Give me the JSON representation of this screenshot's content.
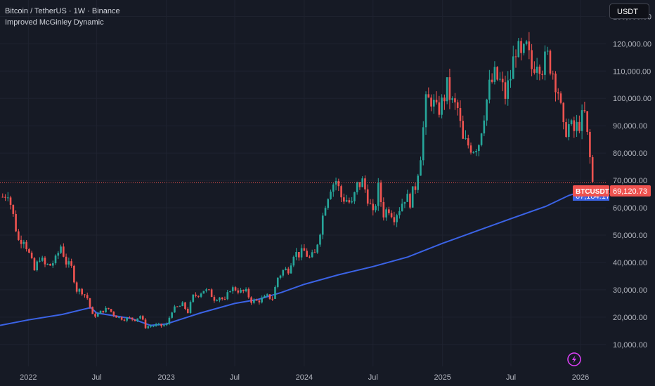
{
  "header": {
    "symbol_line": "Bitcoin / TetherUS · 1W · Binance",
    "indicator_line": "Improved McGinley Dynamic"
  },
  "currency_button": "USDT",
  "price_tag": {
    "symbol": "BTCUSDT",
    "price": "69,120.73",
    "indicator_value": "67,184.17"
  },
  "colors": {
    "background": "#161a25",
    "up": "#26a69a",
    "down": "#ef5350",
    "indicator": "#3b63e6",
    "grid": "#1f2330",
    "price_line": "#ef5350"
  },
  "icons": {
    "bottom_right": "lightning-icon"
  },
  "chart_data": {
    "type": "candlestick",
    "title": "",
    "y_tick_labels": [
      "130,000.00",
      "120,000.00",
      "110,000.00",
      "100,000.00",
      "90,000.00",
      "80,000.00",
      "70,000.00",
      "60,000.00",
      "50,000.00",
      "40,000.00",
      "30,000.00",
      "20,000.00",
      "10,000.00"
    ],
    "y_ticks": [
      130000,
      120000,
      110000,
      100000,
      90000,
      80000,
      70000,
      60000,
      50000,
      40000,
      30000,
      20000,
      10000
    ],
    "x_tick_labels": [
      "2022",
      "Jul",
      "2023",
      "Jul",
      "2024",
      "Jul",
      "2025",
      "Jul",
      "2026"
    ],
    "x_ticks": [
      "2022-01-01",
      "2022-07-01",
      "2023-01-01",
      "2023-07-01",
      "2024-01-01",
      "2024-07-01",
      "2025-01-01",
      "2025-07-01",
      "2026-01-01"
    ],
    "x_range": [
      "2021-10-18",
      "2026-03-09"
    ],
    "ylim": [
      2000,
      136000
    ],
    "grid": true,
    "series": [
      {
        "name": "BTCUSDT",
        "kind": "ohlc",
        "points": [
          {
            "x": "2021-10-25",
            "c": 64000
          },
          {
            "x": "2021-11-08",
            "c": 66000
          },
          {
            "x": "2021-11-22",
            "c": 57000
          },
          {
            "x": "2021-12-06",
            "c": 48000
          },
          {
            "x": "2021-12-20",
            "c": 49000
          },
          {
            "x": "2022-01-03",
            "c": 43000
          },
          {
            "x": "2022-01-17",
            "c": 37000
          },
          {
            "x": "2022-01-31",
            "c": 42000
          },
          {
            "x": "2022-02-14",
            "c": 39000
          },
          {
            "x": "2022-02-28",
            "c": 39000
          },
          {
            "x": "2022-03-14",
            "c": 41000
          },
          {
            "x": "2022-03-28",
            "c": 46000
          },
          {
            "x": "2022-04-11",
            "c": 40000
          },
          {
            "x": "2022-04-25",
            "c": 38000
          },
          {
            "x": "2022-05-09",
            "c": 30000
          },
          {
            "x": "2022-05-23",
            "c": 29500
          },
          {
            "x": "2022-06-06",
            "c": 27000
          },
          {
            "x": "2022-06-20",
            "c": 20500
          },
          {
            "x": "2022-07-04",
            "c": 21000
          },
          {
            "x": "2022-07-18",
            "c": 22500
          },
          {
            "x": "2022-08-01",
            "c": 23000
          },
          {
            "x": "2022-08-15",
            "c": 21000
          },
          {
            "x": "2022-08-29",
            "c": 19800
          },
          {
            "x": "2022-09-12",
            "c": 19500
          },
          {
            "x": "2022-09-26",
            "c": 19500
          },
          {
            "x": "2022-10-10",
            "c": 19200
          },
          {
            "x": "2022-10-24",
            "c": 20500
          },
          {
            "x": "2022-11-07",
            "c": 16500
          },
          {
            "x": "2022-11-21",
            "c": 16800
          },
          {
            "x": "2022-12-05",
            "c": 17000
          },
          {
            "x": "2022-12-19",
            "c": 16800
          },
          {
            "x": "2023-01-02",
            "c": 17200
          },
          {
            "x": "2023-01-16",
            "c": 22500
          },
          {
            "x": "2023-01-30",
            "c": 23500
          },
          {
            "x": "2023-02-13",
            "c": 24500
          },
          {
            "x": "2023-02-27",
            "c": 22000
          },
          {
            "x": "2023-03-13",
            "c": 27500
          },
          {
            "x": "2023-03-27",
            "c": 28400
          },
          {
            "x": "2023-04-10",
            "c": 30000
          },
          {
            "x": "2023-04-24",
            "c": 29200
          },
          {
            "x": "2023-05-08",
            "c": 26800
          },
          {
            "x": "2023-05-22",
            "c": 27500
          },
          {
            "x": "2023-06-05",
            "c": 25800
          },
          {
            "x": "2023-06-19",
            "c": 30500
          },
          {
            "x": "2023-07-03",
            "c": 30300
          },
          {
            "x": "2023-07-17",
            "c": 29300
          },
          {
            "x": "2023-07-31",
            "c": 29200
          },
          {
            "x": "2023-08-14",
            "c": 26000
          },
          {
            "x": "2023-08-28",
            "c": 25800
          },
          {
            "x": "2023-09-11",
            "c": 26500
          },
          {
            "x": "2023-09-25",
            "c": 27500
          },
          {
            "x": "2023-10-09",
            "c": 27000
          },
          {
            "x": "2023-10-23",
            "c": 34500
          },
          {
            "x": "2023-11-06",
            "c": 37000
          },
          {
            "x": "2023-11-20",
            "c": 37500
          },
          {
            "x": "2023-12-04",
            "c": 43500
          },
          {
            "x": "2023-12-18",
            "c": 43000
          },
          {
            "x": "2024-01-01",
            "c": 44000
          },
          {
            "x": "2024-01-15",
            "c": 41500
          },
          {
            "x": "2024-01-29",
            "c": 43000
          },
          {
            "x": "2024-02-12",
            "c": 52000
          },
          {
            "x": "2024-02-26",
            "c": 62000
          },
          {
            "x": "2024-03-11",
            "c": 68000
          },
          {
            "x": "2024-03-25",
            "c": 70000
          },
          {
            "x": "2024-04-08",
            "c": 64000
          },
          {
            "x": "2024-04-22",
            "c": 63000
          },
          {
            "x": "2024-05-06",
            "c": 61000
          },
          {
            "x": "2024-05-20",
            "c": 68000
          },
          {
            "x": "2024-06-03",
            "c": 69500
          },
          {
            "x": "2024-06-17",
            "c": 64000
          },
          {
            "x": "2024-07-01",
            "c": 57000
          },
          {
            "x": "2024-07-15",
            "c": 67000
          },
          {
            "x": "2024-07-29",
            "c": 58000
          },
          {
            "x": "2024-08-12",
            "c": 60000
          },
          {
            "x": "2024-08-26",
            "c": 57000
          },
          {
            "x": "2024-09-09",
            "c": 60000
          },
          {
            "x": "2024-09-23",
            "c": 64000
          },
          {
            "x": "2024-10-07",
            "c": 62500
          },
          {
            "x": "2024-10-21",
            "c": 68000
          },
          {
            "x": "2024-11-04",
            "c": 80000
          },
          {
            "x": "2024-11-18",
            "c": 98000
          },
          {
            "x": "2024-12-02",
            "c": 100000
          },
          {
            "x": "2024-12-16",
            "c": 95000
          },
          {
            "x": "2024-12-30",
            "c": 98000
          },
          {
            "x": "2025-01-13",
            "c": 104000
          },
          {
            "x": "2025-01-27",
            "c": 98000
          },
          {
            "x": "2025-02-10",
            "c": 96000
          },
          {
            "x": "2025-02-24",
            "c": 84000
          },
          {
            "x": "2025-03-10",
            "c": 83000
          },
          {
            "x": "2025-03-24",
            "c": 82000
          },
          {
            "x": "2025-04-07",
            "c": 84000
          },
          {
            "x": "2025-04-21",
            "c": 95000
          },
          {
            "x": "2025-05-05",
            "c": 104000
          },
          {
            "x": "2025-05-19",
            "c": 108000
          },
          {
            "x": "2025-06-02",
            "c": 106000
          },
          {
            "x": "2025-06-16",
            "c": 101000
          },
          {
            "x": "2025-06-30",
            "c": 108000
          },
          {
            "x": "2025-07-14",
            "c": 119000
          },
          {
            "x": "2025-07-28",
            "c": 114000
          },
          {
            "x": "2025-08-11",
            "c": 118000
          },
          {
            "x": "2025-08-25",
            "c": 111000
          },
          {
            "x": "2025-09-08",
            "c": 115000
          },
          {
            "x": "2025-09-22",
            "c": 112000
          },
          {
            "x": "2025-10-06",
            "c": 115000
          },
          {
            "x": "2025-10-20",
            "c": 110000
          },
          {
            "x": "2025-11-03",
            "c": 103000
          },
          {
            "x": "2025-11-17",
            "c": 88000
          },
          {
            "x": "2025-12-01",
            "c": 90000
          },
          {
            "x": "2025-12-15",
            "c": 88000
          },
          {
            "x": "2025-12-29",
            "c": 91000
          },
          {
            "x": "2026-01-12",
            "c": 94000
          },
          {
            "x": "2026-01-26",
            "c": 78000
          },
          {
            "x": "2026-02-02",
            "c": 69120
          }
        ]
      },
      {
        "name": "Improved McGinley Dynamic",
        "kind": "line",
        "points": [
          {
            "x": "2021-10-18",
            "y": 17000
          },
          {
            "x": "2022-01-01",
            "y": 19000
          },
          {
            "x": "2022-04-01",
            "y": 21000
          },
          {
            "x": "2022-06-15",
            "y": 23500
          },
          {
            "x": "2022-07-01",
            "y": 21500
          },
          {
            "x": "2022-10-01",
            "y": 19500
          },
          {
            "x": "2022-11-20",
            "y": 17000
          },
          {
            "x": "2023-01-01",
            "y": 17500
          },
          {
            "x": "2023-04-01",
            "y": 21500
          },
          {
            "x": "2023-07-01",
            "y": 25000
          },
          {
            "x": "2023-09-01",
            "y": 26500
          },
          {
            "x": "2023-11-01",
            "y": 29000
          },
          {
            "x": "2024-01-01",
            "y": 32000
          },
          {
            "x": "2024-04-01",
            "y": 35500
          },
          {
            "x": "2024-07-01",
            "y": 38500
          },
          {
            "x": "2024-10-01",
            "y": 42000
          },
          {
            "x": "2025-01-01",
            "y": 47000
          },
          {
            "x": "2025-04-01",
            "y": 51500
          },
          {
            "x": "2025-07-01",
            "y": 56000
          },
          {
            "x": "2025-10-01",
            "y": 60500
          },
          {
            "x": "2025-12-01",
            "y": 64500
          },
          {
            "x": "2026-02-02",
            "y": 67184
          }
        ]
      }
    ]
  }
}
